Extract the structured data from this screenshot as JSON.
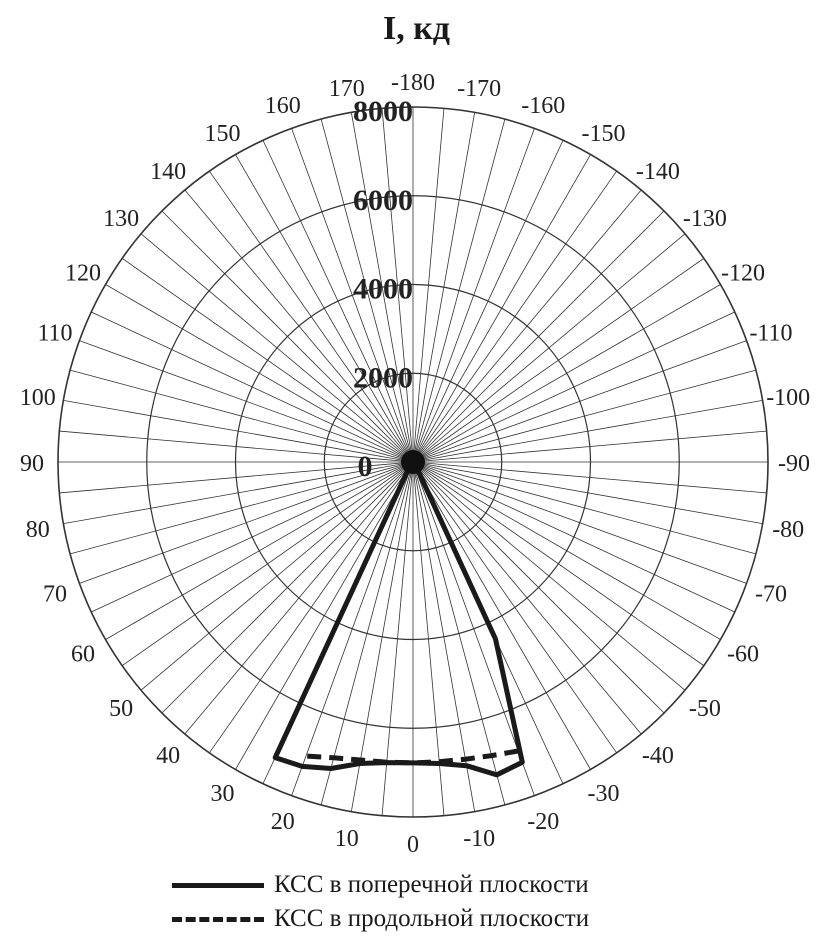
{
  "chart_data": {
    "type": "polar",
    "title": "I, кд",
    "radial_ticks": [
      "0",
      "2000",
      "4000",
      "6000",
      "8000"
    ],
    "radial_range": [
      0,
      8000
    ],
    "angle_step_major": 10,
    "angle_step_minor": 5,
    "angle_labels_left": [
      0,
      10,
      20,
      30,
      40,
      50,
      60,
      70,
      80,
      90,
      100,
      110,
      120,
      130,
      140,
      150,
      160,
      170
    ],
    "angle_labels_right": [
      -10,
      -20,
      -30,
      -40,
      -50,
      -60,
      -70,
      -80,
      -90,
      -100,
      -110,
      -120,
      -130,
      -140,
      -150,
      -160,
      -170,
      -180
    ],
    "series": [
      {
        "name": "КСС в поперечной плоскости",
        "style": "solid",
        "color": "#1a1a1a",
        "points": [
          {
            "angle": -90,
            "value": 0
          },
          {
            "angle": -40,
            "value": 50
          },
          {
            "angle": -30,
            "value": 250
          },
          {
            "angle": -25,
            "value": 4400
          },
          {
            "angle": -20,
            "value": 7200
          },
          {
            "angle": -15,
            "value": 7300
          },
          {
            "angle": -10,
            "value": 6950
          },
          {
            "angle": -5,
            "value": 6820
          },
          {
            "angle": 0,
            "value": 6780
          },
          {
            "angle": 5,
            "value": 6800
          },
          {
            "angle": 10,
            "value": 6900
          },
          {
            "angle": 15,
            "value": 7150
          },
          {
            "angle": 20,
            "value": 7300
          },
          {
            "angle": 25,
            "value": 7350
          },
          {
            "angle": 30,
            "value": 300
          },
          {
            "angle": 40,
            "value": 50
          },
          {
            "angle": 90,
            "value": 0
          }
        ]
      },
      {
        "name": "КСС в продольной плоскости",
        "style": "dashed",
        "color": "#1a1a1a",
        "points": [
          {
            "angle": -20,
            "value": 6930
          },
          {
            "angle": -15,
            "value": 6850
          },
          {
            "angle": -10,
            "value": 6800
          },
          {
            "angle": -5,
            "value": 6780
          },
          {
            "angle": 0,
            "value": 6780
          },
          {
            "angle": 5,
            "value": 6790
          },
          {
            "angle": 10,
            "value": 6820
          },
          {
            "angle": 15,
            "value": 6900
          },
          {
            "angle": 20,
            "value": 7050
          }
        ]
      }
    ]
  }
}
